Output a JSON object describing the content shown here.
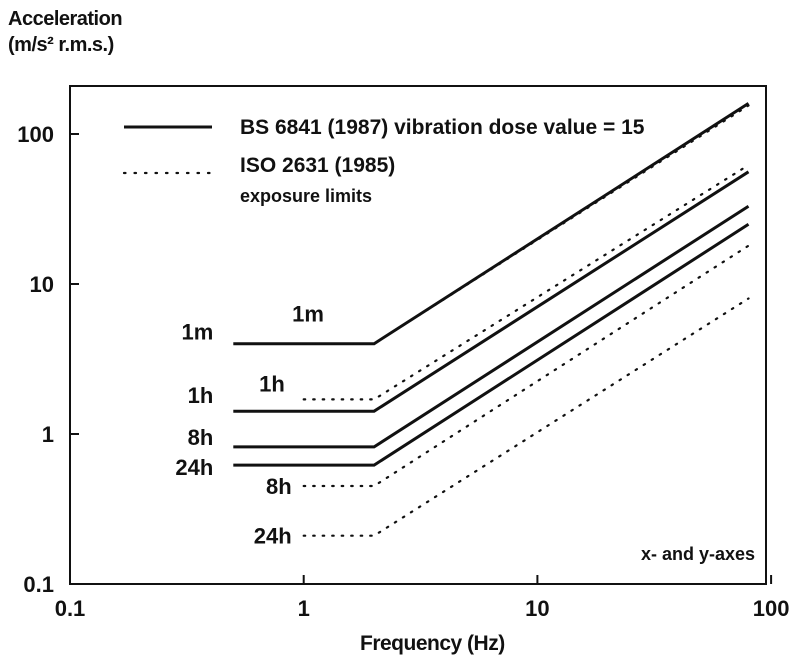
{
  "chart_data": {
    "type": "line",
    "ylabel_line1": "Acceleration",
    "ylabel_line2": "(m/s² r.m.s.)",
    "xlabel": "Frequency (Hz)",
    "x_scale": "log",
    "y_scale": "log",
    "xlim": [
      0.1,
      100
    ],
    "ylim": [
      0.1,
      300
    ],
    "x_ticks": [
      {
        "value": 0.1,
        "label": "0.1"
      },
      {
        "value": 1,
        "label": "1"
      },
      {
        "value": 10,
        "label": "10"
      },
      {
        "value": 100,
        "label": "100"
      }
    ],
    "y_ticks": [
      {
        "value": 0.1,
        "label": "0.1"
      },
      {
        "value": 1,
        "label": "1"
      },
      {
        "value": 10,
        "label": "10"
      },
      {
        "value": 100,
        "label": "100"
      }
    ],
    "grid": false,
    "legend": {
      "placement": "top-left",
      "entries": [
        {
          "label": "BS 6841 (1987) vibration dose value = 15",
          "style": "solid"
        },
        {
          "label": "ISO 2631 (1985)",
          "label2": "exposure limits",
          "style": "dotted"
        }
      ]
    },
    "annotation": "x- and y-axes",
    "series": [
      {
        "name": "1m",
        "group": "BS 6841 (1987) vibration dose value = 15",
        "style": "solid",
        "points": [
          [
            0.5,
            4.0
          ],
          [
            2.0,
            4.0
          ],
          [
            80,
            160
          ]
        ]
      },
      {
        "name": "1h",
        "group": "BS 6841 (1987) vibration dose value = 15",
        "style": "solid",
        "points": [
          [
            0.5,
            1.42
          ],
          [
            2.0,
            1.42
          ],
          [
            80,
            56
          ]
        ]
      },
      {
        "name": "8h",
        "group": "BS 6841 (1987) vibration dose value = 15",
        "style": "solid",
        "points": [
          [
            0.5,
            0.82
          ],
          [
            2.0,
            0.82
          ],
          [
            80,
            33
          ]
        ]
      },
      {
        "name": "24h",
        "group": "BS 6841 (1987) vibration dose value = 15",
        "style": "solid",
        "points": [
          [
            0.5,
            0.62
          ],
          [
            2.0,
            0.62
          ],
          [
            80,
            25
          ]
        ]
      },
      {
        "name": "1m",
        "group": "ISO 2631 (1985) exposure limits",
        "style": "dotted",
        "points": [
          [
            1.0,
            4.0
          ],
          [
            2.0,
            4.0
          ],
          [
            80,
            155
          ]
        ]
      },
      {
        "name": "1h",
        "group": "ISO 2631 (1985) exposure limits",
        "style": "dotted",
        "points": [
          [
            1.0,
            1.7
          ],
          [
            2.0,
            1.7
          ],
          [
            80,
            62
          ]
        ]
      },
      {
        "name": "8h",
        "group": "ISO 2631 (1985) exposure limits",
        "style": "dotted",
        "points": [
          [
            1.0,
            0.45
          ],
          [
            2.0,
            0.45
          ],
          [
            80,
            18
          ]
        ]
      },
      {
        "name": "24h",
        "group": "ISO 2631 (1985) exposure limits",
        "style": "dotted",
        "points": [
          [
            1.0,
            0.21
          ],
          [
            2.0,
            0.21
          ],
          [
            80,
            8
          ]
        ]
      }
    ]
  }
}
